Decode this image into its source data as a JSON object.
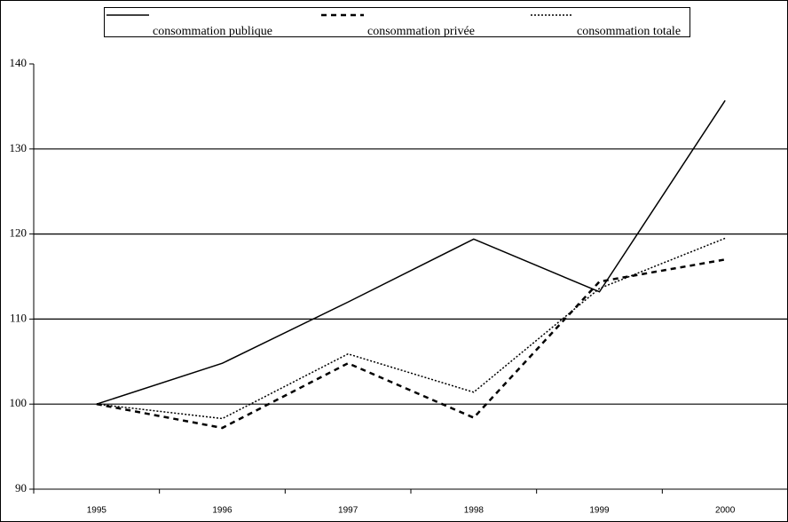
{
  "chart_data": {
    "type": "line",
    "categories": [
      "1995",
      "1996",
      "1997",
      "1998",
      "1999",
      "2000"
    ],
    "series": [
      {
        "name": "consommation publique",
        "color": "#000000",
        "dash": "solid",
        "values": [
          100,
          104.8,
          112,
          119.4,
          113.2,
          135.7
        ]
      },
      {
        "name": "consommation privée",
        "color": "#000000",
        "dash": "dashed",
        "values": [
          100,
          97.2,
          104.8,
          98.4,
          114.4,
          117
        ]
      },
      {
        "name": "consommation totale",
        "color": "#000000",
        "dash": "dotted",
        "values": [
          100,
          98.3,
          105.9,
          101.4,
          113.6,
          119.5
        ]
      }
    ],
    "ylim": [
      90,
      140
    ],
    "yticks": [
      90,
      100,
      110,
      120,
      130,
      140
    ],
    "grid": true,
    "legend": "top"
  }
}
